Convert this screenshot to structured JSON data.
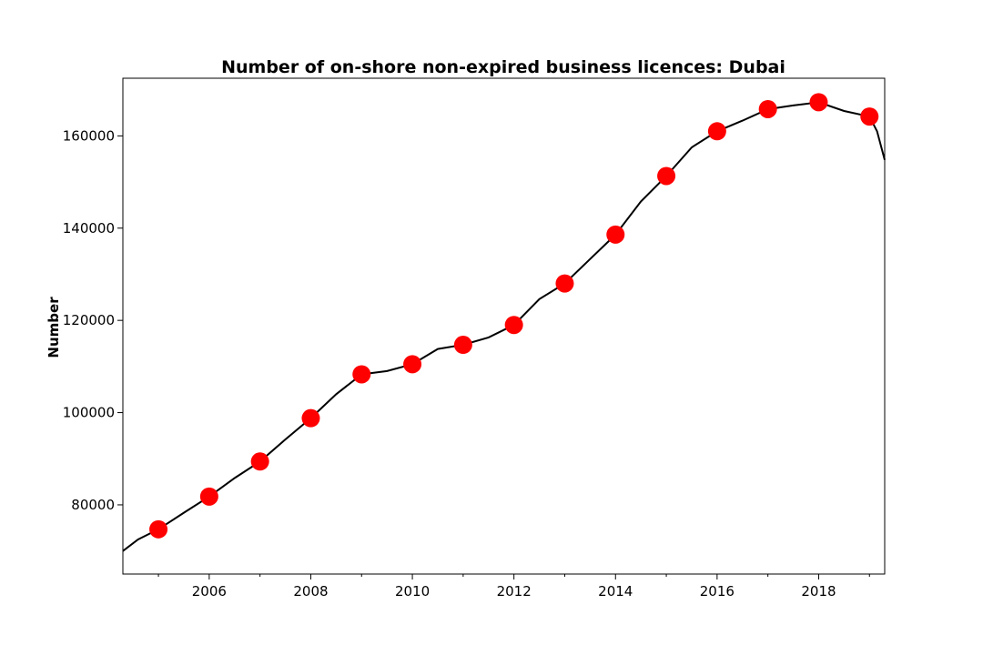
{
  "chart_data": {
    "type": "line",
    "title": "Number of on-shore non-expired business licences: Dubai",
    "xlabel": "",
    "ylabel": "Number",
    "xlim": [
      2004.3,
      2019.3
    ],
    "ylim": [
      65000,
      172500
    ],
    "x_ticks": [
      2006,
      2008,
      2010,
      2012,
      2014,
      2016,
      2018
    ],
    "x_tick_labels": [
      "2006",
      "2008",
      "2010",
      "2012",
      "2014",
      "2016",
      "2018"
    ],
    "y_ticks": [
      80000,
      100000,
      120000,
      140000,
      160000
    ],
    "y_tick_labels": [
      "80000",
      "100000",
      "120000",
      "140000",
      "160000"
    ],
    "grid": false,
    "line_color": "#000000",
    "marker_color": "#ff0000",
    "series": [
      {
        "values": [
          {
            "x": 2004.3,
            "y": 70000
          },
          {
            "x": 2004.6,
            "y": 72500
          },
          {
            "x": 2005.0,
            "y": 74700
          },
          {
            "x": 2005.5,
            "y": 78300
          },
          {
            "x": 2006.0,
            "y": 81800
          },
          {
            "x": 2006.5,
            "y": 85800
          },
          {
            "x": 2007.0,
            "y": 89400
          },
          {
            "x": 2007.5,
            "y": 94200
          },
          {
            "x": 2008.0,
            "y": 98800
          },
          {
            "x": 2008.5,
            "y": 104000
          },
          {
            "x": 2009.0,
            "y": 108300
          },
          {
            "x": 2009.5,
            "y": 109000
          },
          {
            "x": 2010.0,
            "y": 110500
          },
          {
            "x": 2010.5,
            "y": 113800
          },
          {
            "x": 2011.0,
            "y": 114700
          },
          {
            "x": 2011.5,
            "y": 116300
          },
          {
            "x": 2012.0,
            "y": 119000
          },
          {
            "x": 2012.5,
            "y": 124600
          },
          {
            "x": 2013.0,
            "y": 128000
          },
          {
            "x": 2013.5,
            "y": 133300
          },
          {
            "x": 2014.0,
            "y": 138600
          },
          {
            "x": 2014.5,
            "y": 145800
          },
          {
            "x": 2015.0,
            "y": 151300
          },
          {
            "x": 2015.5,
            "y": 157500
          },
          {
            "x": 2016.0,
            "y": 161000
          },
          {
            "x": 2016.5,
            "y": 163300
          },
          {
            "x": 2017.0,
            "y": 165800
          },
          {
            "x": 2017.5,
            "y": 166600
          },
          {
            "x": 2018.0,
            "y": 167300
          },
          {
            "x": 2018.5,
            "y": 165400
          },
          {
            "x": 2019.0,
            "y": 164200
          },
          {
            "x": 2019.15,
            "y": 161000
          },
          {
            "x": 2019.3,
            "y": 154800
          }
        ]
      }
    ],
    "markers": [
      {
        "x": 2005,
        "y": 74700
      },
      {
        "x": 2006,
        "y": 81800
      },
      {
        "x": 2007,
        "y": 89400
      },
      {
        "x": 2008,
        "y": 98800
      },
      {
        "x": 2009,
        "y": 108300
      },
      {
        "x": 2010,
        "y": 110500
      },
      {
        "x": 2011,
        "y": 114700
      },
      {
        "x": 2012,
        "y": 119000
      },
      {
        "x": 2013,
        "y": 128000
      },
      {
        "x": 2014,
        "y": 138600
      },
      {
        "x": 2015,
        "y": 151300
      },
      {
        "x": 2016,
        "y": 161000
      },
      {
        "x": 2017,
        "y": 165800
      },
      {
        "x": 2018,
        "y": 167300
      },
      {
        "x": 2019,
        "y": 164200
      }
    ]
  }
}
